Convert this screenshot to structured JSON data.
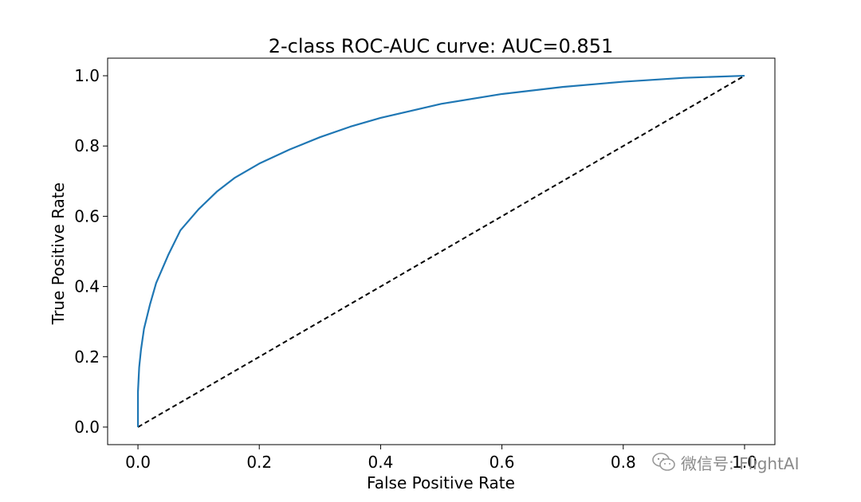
{
  "chart_data": {
    "type": "line",
    "title": "2-class ROC-AUC curve: AUC=0.851",
    "xlabel": "False Positive Rate",
    "ylabel": "True Positive Rate",
    "xlim": [
      -0.05,
      1.05
    ],
    "ylim": [
      -0.05,
      1.05
    ],
    "xticks": [
      "0.0",
      "0.2",
      "0.4",
      "0.6",
      "0.8",
      "1.0"
    ],
    "yticks": [
      "0.0",
      "0.2",
      "0.4",
      "0.6",
      "0.8",
      "1.0"
    ],
    "grid": false,
    "series": [
      {
        "style": "solid",
        "color": "#1f77b4",
        "x": [
          0.0,
          0.0,
          0.002,
          0.005,
          0.01,
          0.02,
          0.03,
          0.05,
          0.07,
          0.1,
          0.13,
          0.16,
          0.2,
          0.25,
          0.3,
          0.35,
          0.4,
          0.5,
          0.6,
          0.7,
          0.8,
          0.9,
          1.0
        ],
        "y": [
          0.0,
          0.1,
          0.17,
          0.22,
          0.28,
          0.35,
          0.41,
          0.49,
          0.56,
          0.62,
          0.67,
          0.71,
          0.75,
          0.79,
          0.825,
          0.855,
          0.88,
          0.92,
          0.948,
          0.968,
          0.983,
          0.994,
          1.0
        ]
      },
      {
        "style": "dashed",
        "color": "#000000",
        "x": [
          0.0,
          1.0
        ],
        "y": [
          0.0,
          1.0
        ]
      }
    ]
  },
  "watermark": {
    "text": "微信号: FlightAI",
    "icon": "wechat-icon",
    "color": "#8a8a8a"
  }
}
